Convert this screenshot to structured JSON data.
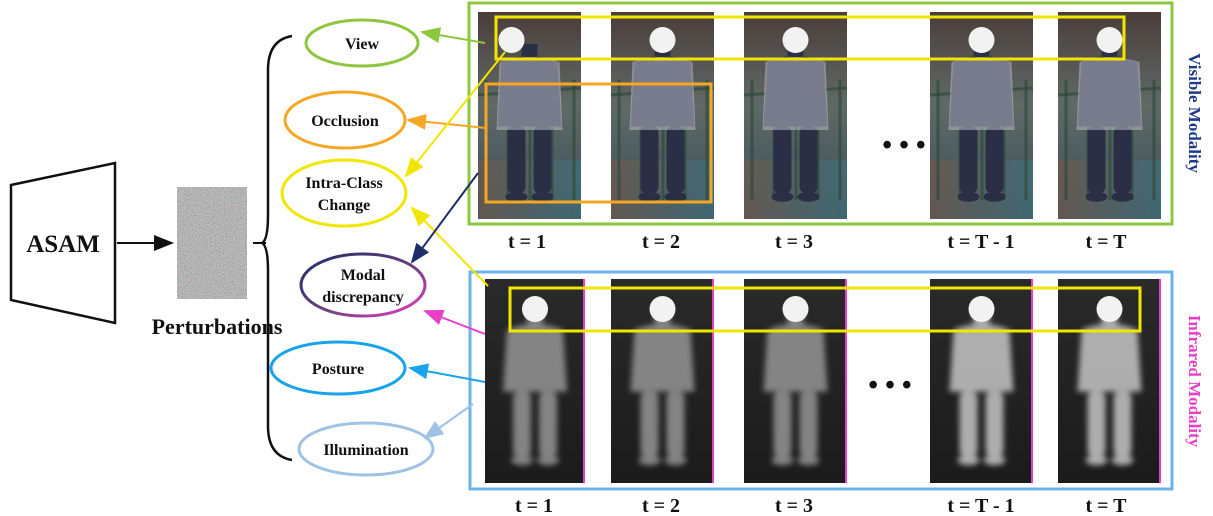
{
  "encoder": {
    "label": "ASAM"
  },
  "perturbation": {
    "label": "Perturbations"
  },
  "factors": [
    {
      "label_lines": [
        "View"
      ],
      "color": "#8dc63f"
    },
    {
      "label_lines": [
        "Occlusion"
      ],
      "color": "#f5a623"
    },
    {
      "label_lines": [
        "Intra-Class",
        "Change"
      ],
      "color": "#f2e600"
    },
    {
      "label_lines": [
        "Modal",
        "discrepancy"
      ],
      "color": "#1f2d6b"
    },
    {
      "label_lines": [
        "Posture"
      ],
      "color": "#1aa3e8"
    },
    {
      "label_lines": [
        "Illumination"
      ],
      "color": "#9ec3e6"
    }
  ],
  "visible": {
    "modality_label": "Visible Modality",
    "label_color": "#1f3a8a",
    "border_color": "#8dc63f",
    "time_labels": [
      "t = 1",
      "t = 2",
      "t = 3",
      "t = T - 1",
      "t = T"
    ],
    "ellipsis": "• • •"
  },
  "infrared": {
    "modality_label": "Infrared Modality",
    "label_color": "#e83ec8",
    "border_color": "#6db3e8",
    "time_labels": [
      "t = 1",
      "t = 2",
      "t = 3",
      "t = T - 1",
      "t = T"
    ],
    "ellipsis": "• • •"
  }
}
